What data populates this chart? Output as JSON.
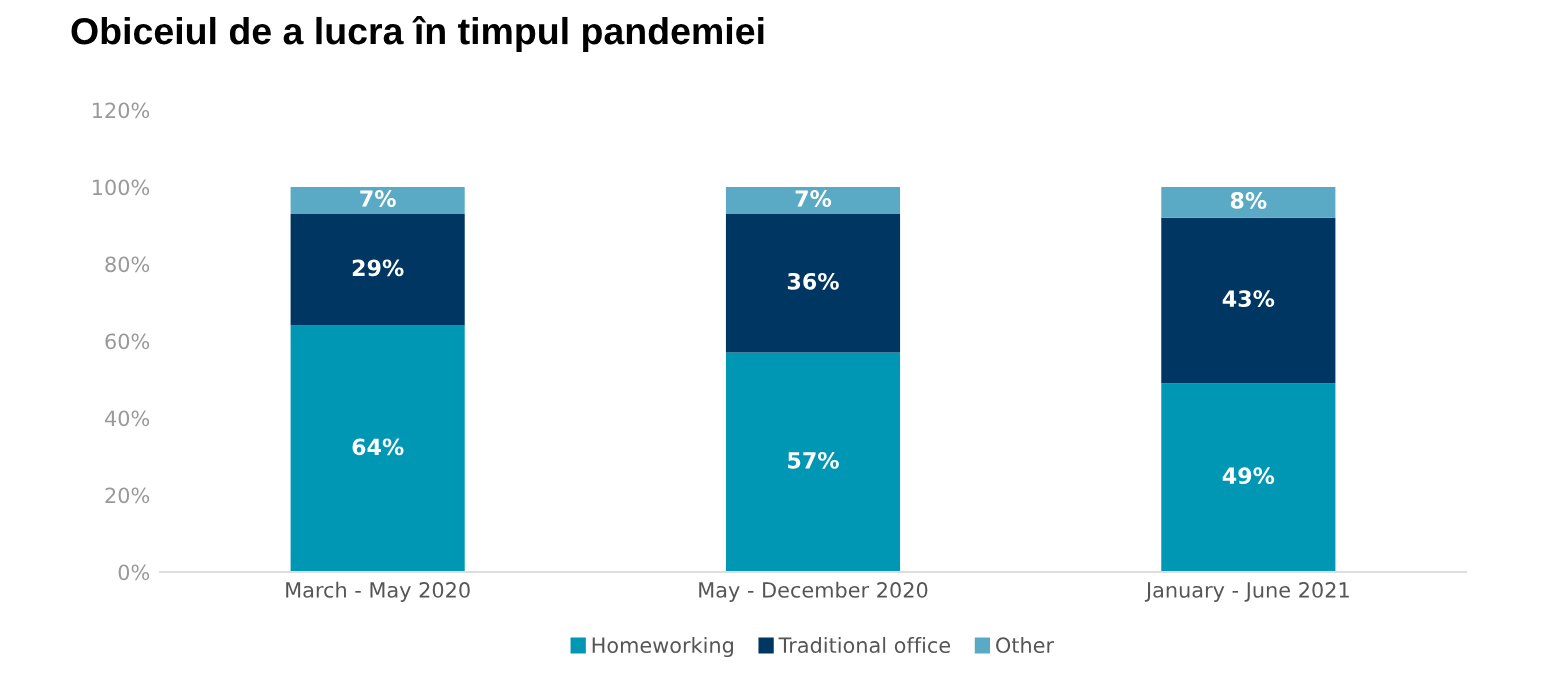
{
  "chart_data": {
    "type": "bar",
    "title": "Obiceiul de a lucra în timpul pandemiei",
    "stacked": true,
    "categories": [
      "March - May 2020",
      "May - December 2020",
      "January - June 2021"
    ],
    "series": [
      {
        "name": "Homeworking",
        "color": "#0097b5",
        "values": [
          64,
          57,
          49
        ],
        "value_labels": [
          "64%",
          "57%",
          "49%"
        ]
      },
      {
        "name": "Traditional office",
        "color": "#003662",
        "values": [
          29,
          36,
          43
        ],
        "value_labels": [
          "29%",
          "36%",
          "43%"
        ]
      },
      {
        "name": "Other",
        "color": "#5aaac5",
        "values": [
          7,
          7,
          8
        ],
        "value_labels": [
          "7%",
          "7%",
          "8%"
        ]
      }
    ],
    "ylim": [
      0,
      120
    ],
    "yticks": [
      {
        "value": 0,
        "label": "0%"
      },
      {
        "value": 20,
        "label": "20%"
      },
      {
        "value": 40,
        "label": "40%"
      },
      {
        "value": 60,
        "label": "60%"
      },
      {
        "value": 80,
        "label": "80%"
      },
      {
        "value": 100,
        "label": "100%"
      },
      {
        "value": 120,
        "label": "120%"
      }
    ],
    "grid": false,
    "legend": "bottom"
  }
}
